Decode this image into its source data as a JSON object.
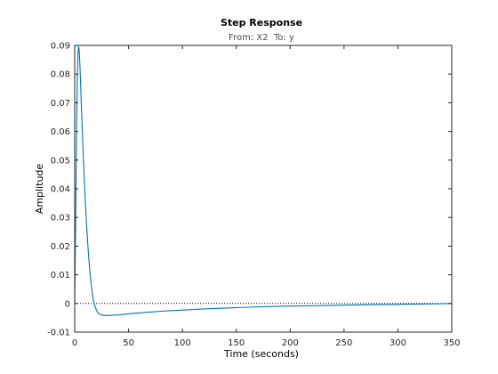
{
  "chart_data": {
    "type": "line",
    "title": "Step Response",
    "subtitle": "From: X2  To: y",
    "xlabel": "Time (seconds)",
    "ylabel": "Amplitude",
    "xlim": [
      0,
      350
    ],
    "ylim": [
      -0.01,
      0.09
    ],
    "xticks": [
      0,
      50,
      100,
      150,
      200,
      250,
      300,
      350
    ],
    "yticks": [
      -0.01,
      0,
      0.01,
      0.02,
      0.03,
      0.04,
      0.05,
      0.06,
      0.07,
      0.08,
      0.09
    ],
    "xtick_labels": [
      "0",
      "50",
      "100",
      "150",
      "200",
      "250",
      "300",
      "350"
    ],
    "ytick_labels": [
      "-0.01",
      "0",
      "0.01",
      "0.02",
      "0.03",
      "0.04",
      "0.05",
      "0.06",
      "0.07",
      "0.08",
      "0.09"
    ],
    "grid": false,
    "reference_line": {
      "y": 0,
      "style": "dotted",
      "color": "#000000"
    },
    "series": [
      {
        "color": "#0072bd",
        "x": [
          0,
          0.5,
          1,
          1.5,
          2,
          2.5,
          3,
          3.5,
          4,
          4.5,
          5,
          5.5,
          6,
          7,
          8,
          9,
          10,
          11,
          12,
          13,
          14,
          15,
          16,
          17,
          18,
          19,
          20,
          21,
          22,
          23,
          24,
          25,
          26,
          28,
          30,
          32,
          35,
          40,
          45,
          50,
          60,
          70,
          80,
          90,
          100,
          120,
          140,
          160,
          180,
          200,
          220,
          250,
          280,
          300,
          320,
          340,
          350
        ],
        "y": [
          0,
          0.016,
          0.034,
          0.052,
          0.068,
          0.079,
          0.0865,
          0.0895,
          0.089,
          0.086,
          0.0815,
          0.0765,
          0.071,
          0.061,
          0.051,
          0.0425,
          0.0345,
          0.0275,
          0.0215,
          0.016,
          0.0115,
          0.0075,
          0.0045,
          0.002,
          0.0,
          -0.0012,
          -0.0022,
          -0.0029,
          -0.0034,
          -0.0037,
          -0.0039,
          -0.004,
          -0.0041,
          -0.0042,
          -0.0042,
          -0.0042,
          -0.0041,
          -0.004,
          -0.0038,
          -0.0036,
          -0.0033,
          -0.003,
          -0.0027,
          -0.0025,
          -0.0023,
          -0.0019,
          -0.0016,
          -0.0013,
          -0.0011,
          -0.0009,
          -0.0008,
          -0.0006,
          -0.0004,
          -0.0003,
          -0.0002,
          -0.0001,
          0.0
        ]
      }
    ]
  }
}
